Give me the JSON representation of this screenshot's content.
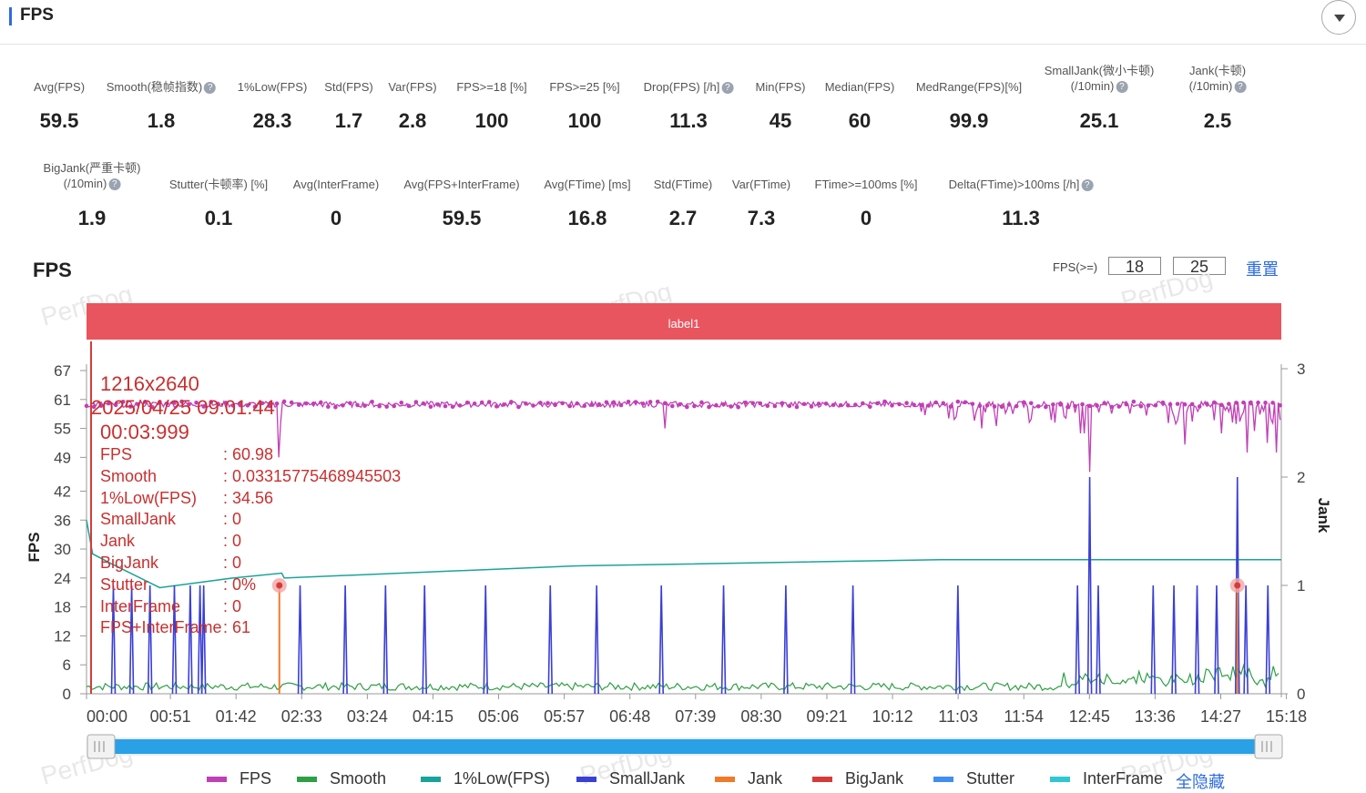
{
  "header": {
    "title": "FPS"
  },
  "stats_row1": [
    {
      "label": "Avg(FPS)",
      "value": "59.5",
      "help": false
    },
    {
      "label": "Smooth(稳帧指数)",
      "value": "1.8",
      "help": true
    },
    {
      "label": "1%Low(FPS)",
      "value": "28.3",
      "help": false
    },
    {
      "label": "Std(FPS)",
      "value": "1.7",
      "help": false
    },
    {
      "label": "Var(FPS)",
      "value": "2.8",
      "help": false
    },
    {
      "label": "FPS>=18 [%]",
      "value": "100",
      "help": false
    },
    {
      "label": "FPS>=25 [%]",
      "value": "100",
      "help": false
    },
    {
      "label": "Drop(FPS) [/h]",
      "value": "11.3",
      "help": true
    },
    {
      "label": "Min(FPS)",
      "value": "45",
      "help": false
    },
    {
      "label": "Median(FPS)",
      "value": "60",
      "help": false
    },
    {
      "label": "MedRange(FPS)[%]",
      "value": "99.9",
      "help": false
    },
    {
      "label": "SmallJank(微小卡顿)",
      "label2": "(/10min)",
      "value": "25.1",
      "help": true
    },
    {
      "label": "Jank(卡顿)",
      "label2": "(/10min)",
      "value": "2.5",
      "help": true
    }
  ],
  "stats_row2": [
    {
      "label": "BigJank(严重卡顿)",
      "label2": "(/10min)",
      "value": "1.9",
      "help": true
    },
    {
      "label": "Stutter(卡顿率) [%]",
      "value": "0.1",
      "help": false
    },
    {
      "label": "Avg(InterFrame)",
      "value": "0",
      "help": false
    },
    {
      "label": "Avg(FPS+InterFrame)",
      "value": "59.5",
      "help": false
    },
    {
      "label": "Avg(FTime) [ms]",
      "value": "16.8",
      "help": false
    },
    {
      "label": "Std(FTime)",
      "value": "2.7",
      "help": false
    },
    {
      "label": "Var(FTime)",
      "value": "7.3",
      "help": false
    },
    {
      "label": "FTime>=100ms [%]",
      "value": "0",
      "help": false
    },
    {
      "label": "Delta(FTime)>100ms [/h]",
      "value": "11.3",
      "help": true
    }
  ],
  "chart_title": "FPS",
  "fps_threshold": {
    "label": "FPS(>=)",
    "values": [
      "18",
      "25"
    ],
    "reset": "重置"
  },
  "watermark": "PerfDog",
  "chart_data": {
    "type": "line",
    "label_band": "label1",
    "ylabel": "FPS",
    "y2label": "Jank",
    "y_ticks": [
      0,
      6,
      12,
      18,
      24,
      30,
      36,
      42,
      49,
      55,
      61,
      67
    ],
    "y2_ticks": [
      0,
      1,
      2,
      3
    ],
    "x_ticks": [
      "00:00",
      "00:51",
      "01:42",
      "02:33",
      "03:24",
      "04:15",
      "05:06",
      "05:57",
      "06:48",
      "07:39",
      "08:30",
      "09:21",
      "10:12",
      "11:03",
      "11:54",
      "12:45",
      "13:36",
      "14:27",
      "15:18"
    ],
    "x_range_sec": [
      0,
      979
    ],
    "series": [
      {
        "name": "FPS",
        "color": "#c03fb5",
        "baseline": 60
      },
      {
        "name": "Smooth",
        "color": "#2ea043",
        "baseline": 0.5
      },
      {
        "name": "1%Low(FPS)",
        "color": "#1aa39a",
        "start": 36,
        "end": 28
      },
      {
        "name": "SmallJank",
        "color": "#3a3fd6"
      },
      {
        "name": "Jank",
        "color": "#f07a2a"
      },
      {
        "name": "BigJank",
        "color": "#d63b3b"
      },
      {
        "name": "Stutter",
        "color": "#3f8ef0"
      },
      {
        "name": "InterFrame",
        "color": "#2fc6d6"
      }
    ],
    "fps_dips": [
      [
        159,
        56
      ],
      [
        158,
        49
      ],
      [
        474,
        55
      ],
      [
        592,
        55
      ],
      [
        734,
        55
      ],
      [
        815,
        54
      ],
      [
        818,
        54
      ],
      [
        822,
        46
      ],
      [
        889,
        55
      ],
      [
        910,
        56
      ],
      [
        930,
        54
      ],
      [
        943,
        46
      ],
      [
        951,
        50
      ],
      [
        968,
        52
      ],
      [
        975,
        50
      ]
    ],
    "smalljank_spikes_sec": [
      22,
      37,
      52,
      72,
      85,
      93,
      96,
      175,
      212,
      245,
      277,
      327,
      380,
      418,
      471,
      522,
      573,
      628,
      714,
      812,
      829,
      874,
      891,
      910,
      926,
      950,
      968
    ],
    "big_spikes_sec": [
      [
        822,
        2.0
      ],
      [
        943,
        2.0
      ]
    ],
    "bigjank_markers_sec": [
      158,
      943
    ],
    "tooltip": {
      "resolution": "1216x2640",
      "datetime": "2025/04/25 09:01:44",
      "time": "00:03:999",
      "rows": [
        {
          "k": "FPS",
          "v": ": 60.98"
        },
        {
          "k": "Smooth",
          "v": ": 0.03315775468945503"
        },
        {
          "k": "1%Low(FPS)",
          "v": ": 34.56"
        },
        {
          "k": "SmallJank",
          "v": ": 0"
        },
        {
          "k": "Jank",
          "v": ": 0"
        },
        {
          "k": "BigJank",
          "v": ": 0"
        },
        {
          "k": "Stutter",
          "v": ": 0%"
        },
        {
          "k": "InterFrame",
          "v": ": 0"
        },
        {
          "k": "FPS+InterFrame",
          "v": ": 61"
        }
      ]
    }
  },
  "legend": [
    {
      "name": "FPS",
      "color": "#c03fb5"
    },
    {
      "name": "Smooth",
      "color": "#2ea043"
    },
    {
      "name": "1%Low(FPS)",
      "color": "#1aa39a"
    },
    {
      "name": "SmallJank",
      "color": "#3a3fd6"
    },
    {
      "name": "Jank",
      "color": "#f07a2a"
    },
    {
      "name": "BigJank",
      "color": "#d63b3b"
    },
    {
      "name": "Stutter",
      "color": "#3f8ef0"
    },
    {
      "name": "InterFrame",
      "color": "#2fc6d6"
    }
  ],
  "hide_all": "全隐藏"
}
